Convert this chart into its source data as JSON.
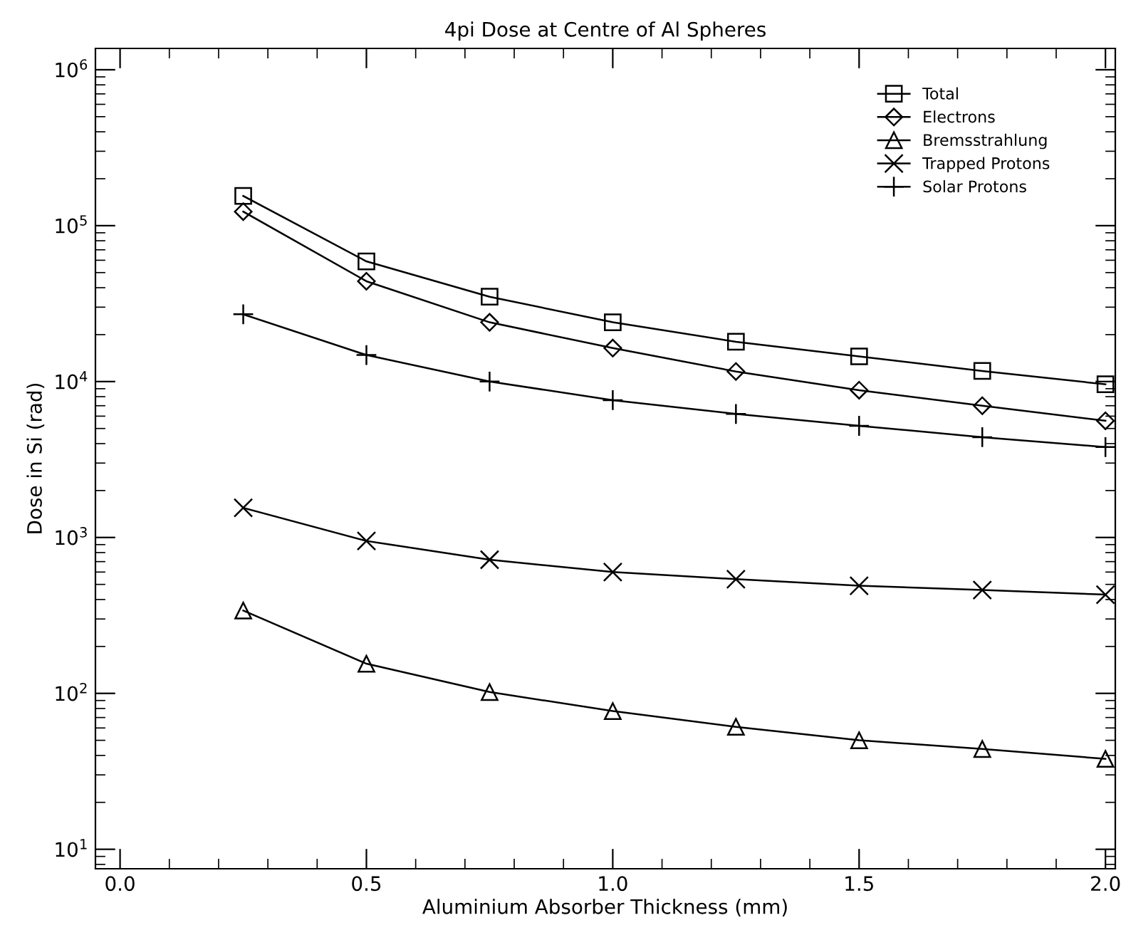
{
  "chart_data": {
    "type": "line",
    "title": "4pi Dose at Centre of Al Spheres",
    "xlabel": "Aluminium Absorber Thickness (mm)",
    "ylabel": "Dose in Si (rad)",
    "x": [
      0.25,
      0.5,
      0.75,
      1.0,
      1.25,
      1.5,
      1.75,
      2.0
    ],
    "series": [
      {
        "name": "Total",
        "color": "#000000",
        "marker": "square",
        "values": [
          155000,
          59000,
          35000,
          24000,
          18000,
          14500,
          11700,
          9600
        ]
      },
      {
        "name": "Electrons",
        "color": "#000000",
        "marker": "diamond",
        "values": [
          123000,
          44000,
          24000,
          16400,
          11600,
          8800,
          7000,
          5600
        ]
      },
      {
        "name": "Bremsstrahlung",
        "color": "#000000",
        "marker": "triangle",
        "values": [
          340,
          155,
          102,
          77,
          61,
          50,
          44,
          38
        ]
      },
      {
        "name": "Trapped Protons",
        "color": "#000000",
        "marker": "cross",
        "values": [
          1550,
          950,
          720,
          600,
          540,
          490,
          460,
          430
        ]
      },
      {
        "name": "Solar Protons",
        "color": "#000000",
        "marker": "plus",
        "values": [
          27000,
          14800,
          10000,
          7600,
          6200,
          5200,
          4400,
          3800
        ]
      }
    ],
    "log": "y",
    "xlim": [
      -0.05,
      2.02
    ],
    "ylim": [
      7.5,
      1370000
    ],
    "xticks": [
      {
        "value": 0,
        "label": "0.0"
      },
      0.5,
      {
        "value": 1,
        "label": "1.0"
      },
      1.5,
      {
        "value": 2,
        "label": "2.0"
      }
    ],
    "yticks": [
      {
        "value": 10,
        "label": "10$^{1}$"
      },
      {
        "value": 100,
        "label": "10$^{2}$"
      },
      {
        "value": 1000,
        "label": "10$^{3}$"
      },
      {
        "value": 10000,
        "label": "10$^{4}$"
      },
      {
        "value": 100000,
        "label": "10$^{5}$"
      },
      {
        "value": 1000000,
        "label": "10$^{6}$"
      }
    ],
    "legend": "top right",
    "grid": false,
    "line_style": "solid"
  }
}
